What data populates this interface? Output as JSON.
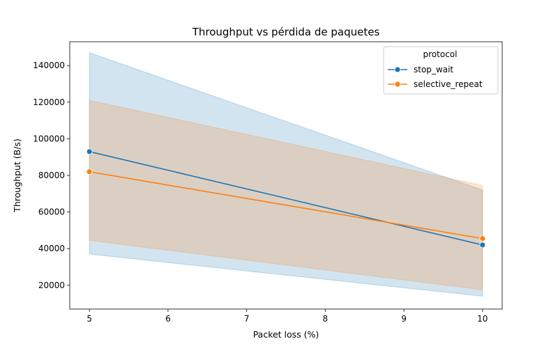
{
  "chart_data": {
    "type": "line",
    "title": "Throughput vs pérdida de paquetes",
    "xlabel": "Packet loss (%)",
    "ylabel": "Throughput (B/s)",
    "x": [
      5,
      10
    ],
    "xlim": [
      4.75,
      10.25
    ],
    "ylim": [
      7000,
      153000
    ],
    "xticks": [
      5,
      6,
      7,
      8,
      9,
      10
    ],
    "yticks": [
      20000,
      40000,
      60000,
      80000,
      100000,
      120000,
      140000
    ],
    "grid": false,
    "legend": {
      "title": "protocol",
      "placement": "top-right"
    },
    "series": [
      {
        "name": "stop_wait",
        "color": "#1f77b4",
        "values": [
          93000,
          42000
        ],
        "ci_lower": [
          37000,
          14000
        ],
        "ci_upper": [
          147000,
          72000
        ]
      },
      {
        "name": "selective_repeat",
        "color": "#ff7f0e",
        "values": [
          82000,
          45500
        ],
        "ci_lower": [
          44500,
          17500
        ],
        "ci_upper": [
          121000,
          74500
        ]
      }
    ]
  }
}
